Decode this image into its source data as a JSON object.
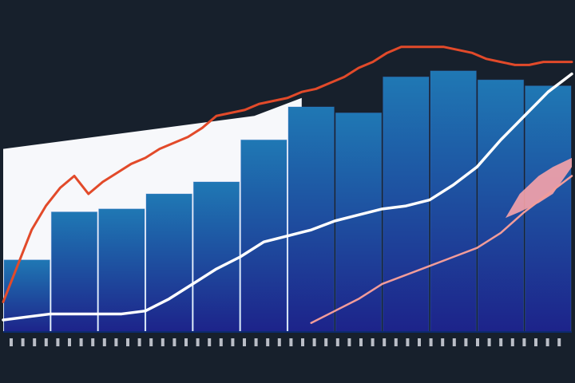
{
  "colors": {
    "background": "#17202c",
    "panel": "#f7f8fb",
    "bar_top": "#1f78b4",
    "bar_bottom": "#1d238a",
    "orange_line": "#e24a2a",
    "white_line": "#ffffff",
    "pink_line": "#f29c9a",
    "pink_area": "#f7a3aa",
    "axis": "#0c2a6e"
  },
  "chart_data": {
    "type": "bar",
    "title": "",
    "xlabel": "",
    "ylabel": "",
    "ylim": [
      0,
      100
    ],
    "x_range": [
      0,
      12
    ],
    "legend": "none",
    "grid": false,
    "bars": {
      "centers": [
        0.5,
        1.5,
        2.5,
        3.5,
        4.5,
        5.5,
        6.5,
        7.5,
        8.5,
        9.5,
        10.5,
        11.5
      ],
      "values": [
        24,
        40,
        41,
        46,
        50,
        64,
        75,
        73,
        85,
        87,
        84,
        82
      ]
    },
    "series": [
      {
        "x": [
          0,
          0.3,
          0.6,
          0.9,
          1.2,
          1.5,
          1.8,
          2.1,
          2.4,
          2.7,
          3.0,
          3.3,
          3.6,
          3.9,
          4.2,
          4.5,
          4.8,
          5.1,
          5.4,
          5.7,
          6.0,
          6.3,
          6.6,
          6.9,
          7.2,
          7.5,
          7.8,
          8.1,
          8.4,
          8.7,
          9.0,
          9.3,
          9.6,
          9.9,
          10.2,
          10.5,
          10.8,
          11.1,
          11.4,
          11.7,
          12.0
        ],
        "values": [
          10,
          22,
          34,
          42,
          48,
          52,
          46,
          50,
          53,
          56,
          58,
          61,
          63,
          65,
          68,
          72,
          73,
          74,
          76,
          77,
          78,
          80,
          81,
          83,
          85,
          88,
          90,
          93,
          95,
          95,
          95,
          95,
          94,
          93,
          91,
          90,
          89,
          89,
          90,
          90,
          90
        ]
      },
      {
        "x": [
          0,
          0.5,
          1.0,
          1.5,
          2.0,
          2.5,
          3.0,
          3.5,
          4.0,
          4.5,
          5.0,
          5.5,
          6.0,
          6.5,
          7.0,
          7.5,
          8.0,
          8.5,
          9.0,
          9.5,
          10.0,
          10.5,
          11.0,
          11.5,
          12.0
        ],
        "values": [
          4,
          5,
          6,
          6,
          6,
          6,
          7,
          11,
          16,
          21,
          25,
          30,
          32,
          34,
          37,
          39,
          41,
          42,
          44,
          49,
          55,
          64,
          72,
          80,
          86
        ]
      },
      {
        "x": [
          6.5,
          7.0,
          7.5,
          8.0,
          8.5,
          9.0,
          9.5,
          10.0,
          10.5,
          11.0,
          11.5,
          12.0
        ],
        "values": [
          3,
          7,
          11,
          16,
          19,
          22,
          25,
          28,
          33,
          40,
          46,
          52
        ]
      }
    ],
    "area": {
      "x": [
        10.6,
        10.9,
        11.3,
        11.6,
        12.0
      ],
      "upper": [
        38,
        46,
        52,
        55,
        58
      ],
      "lower": [
        38,
        40,
        43,
        46,
        55
      ]
    }
  }
}
